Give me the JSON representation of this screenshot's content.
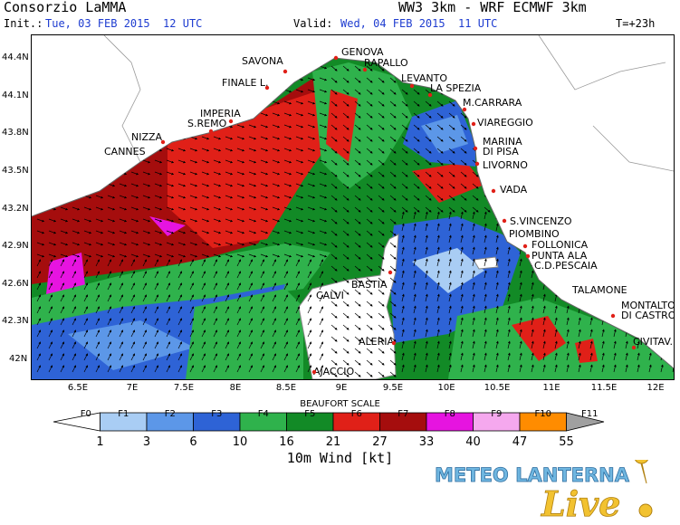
{
  "header": {
    "title_left": "Consorzio LaMMA",
    "title_right": "WW3 3km - WRF ECMWF 3km",
    "init_label": "Init.:",
    "init_value": "Tue, 03 FEB 2015  12 UTC",
    "valid_label": "Valid:",
    "valid_value": "Wed, 04 FEB 2015  11 UTC",
    "forecast_step": "T=+23h"
  },
  "map": {
    "lat_ticks": [
      "44.4N",
      "44.1N",
      "43.8N",
      "43.5N",
      "43.2N",
      "42.9N",
      "42.6N",
      "42.3N",
      "42N"
    ],
    "lon_ticks": [
      "6.5E",
      "7E",
      "7.5E",
      "8E",
      "8.5E",
      "9E",
      "9.5E",
      "10E",
      "10.5E",
      "11E",
      "11.5E",
      "12E"
    ],
    "cities": [
      "GENOVA",
      "SAVONA",
      "RAPALLO",
      "FINALE L.",
      "LEVANTO",
      "LA SPEZIA",
      "IMPERIA",
      "M.CARRARA",
      "S.REMO",
      "VIAREGGIO",
      "NIZZA",
      "MARINA",
      "DI PISA",
      "CANNES",
      "LIVORNO",
      "VADA",
      "S.VINCENZO",
      "PIOMBINO",
      "FOLLONICA",
      "PUNTA ALA",
      "C.D.PESCAIA",
      "BASTIA",
      "CALVI",
      "TALAMONE",
      "MONTALTO",
      "DI CASTRO",
      "ALERIA",
      "CIVITAV.",
      "AJACCIO"
    ]
  },
  "legend": {
    "title": "BEAUFORT SCALE",
    "classes": [
      "F0",
      "F1",
      "F2",
      "F3",
      "F4",
      "F5",
      "F6",
      "F7",
      "F8",
      "F9",
      "F10",
      "F11"
    ],
    "colors": [
      "#ffffff",
      "#a9cdf4",
      "#5c97e8",
      "#2e63d6",
      "#2fb24c",
      "#128a26",
      "#e02018",
      "#a50d0d",
      "#e614e0",
      "#f5a8ee",
      "#ff8c00",
      "#a0a0a0"
    ],
    "values": [
      "1",
      "3",
      "6",
      "10",
      "16",
      "21",
      "27",
      "33",
      "40",
      "47",
      "55"
    ],
    "variable": "10m Wind [kt]"
  },
  "logo": {
    "text_top": "METEO LANTERNA",
    "text_bottom": "Live"
  }
}
